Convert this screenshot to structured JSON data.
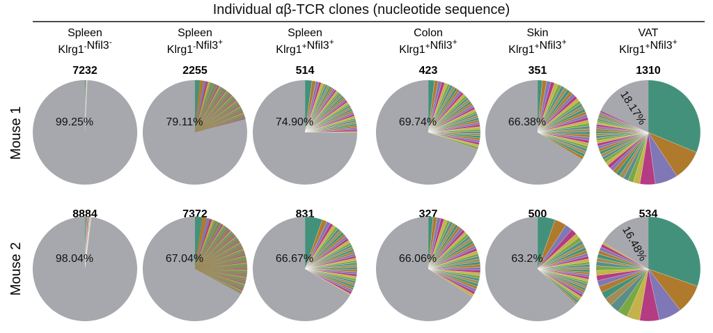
{
  "figure": {
    "title": "Individual αβ-TCR clones (nucleotide sequence)"
  },
  "columns": [
    {
      "tissue": "Spleen",
      "phenotype": [
        [
          "Klrg1",
          "-"
        ],
        [
          "Nfil3",
          "-"
        ]
      ]
    },
    {
      "tissue": "Spleen",
      "phenotype": [
        [
          "Klrg1",
          "-"
        ],
        [
          "Nfil3",
          "+"
        ]
      ]
    },
    {
      "tissue": "Spleen",
      "phenotype": [
        [
          "Klrg1",
          "+"
        ],
        [
          "Nfil3",
          "+"
        ]
      ]
    },
    {
      "tissue": "Colon",
      "phenotype": [
        [
          "Klrg1",
          "+"
        ],
        [
          "Nfil3",
          "+"
        ]
      ]
    },
    {
      "tissue": "Skin",
      "phenotype": [
        [
          "Klrg1",
          "+"
        ],
        [
          "Nfil3",
          "+"
        ]
      ]
    },
    {
      "tissue": "VAT",
      "phenotype": [
        [
          "Klrg1",
          "+"
        ],
        [
          "Nfil3",
          "+"
        ]
      ]
    }
  ],
  "rows": [
    {
      "label": "Mouse 1"
    },
    {
      "label": "Mouse 2"
    }
  ],
  "colors": {
    "remainder": "#a6a8ad",
    "palette": [
      "#43917a",
      "#b07a2c",
      "#8077b6",
      "#b43c82",
      "#c4b24a",
      "#7ba843",
      "#5a8d8a",
      "#a28c55"
    ],
    "dense_fill": "#9e8d5a"
  },
  "chart_data": [
    {
      "type": "pie",
      "row": "Mouse 1",
      "column": 1,
      "count_label": "7232",
      "remainder_label": "99.25%",
      "remainder_pct": 99.25,
      "clone_slices": [
        0.3,
        0.2,
        0.1,
        0.1,
        0.05
      ]
    },
    {
      "type": "pie",
      "row": "Mouse 1",
      "column": 2,
      "count_label": "2255",
      "remainder_label": "79.11%",
      "remainder_pct": 79.11,
      "clone_slices": [
        1.2,
        0.8,
        0.6,
        0.5,
        0.45,
        0.4,
        0.38,
        0.35,
        0.33,
        0.3,
        0.3,
        0.28,
        0.27,
        0.26,
        0.25,
        0.25,
        0.24,
        0.24,
        0.23,
        0.23,
        0.22,
        0.22,
        0.22,
        0.21,
        0.21,
        0.21,
        0.2,
        0.2,
        0.2,
        0.2,
        0.2,
        0.2,
        0.2,
        0.2,
        0.2,
        0.2,
        0.2,
        0.2,
        0.2,
        0.2,
        0.2,
        0.2,
        0.2,
        0.2,
        0.2,
        0.2,
        0.2,
        0.2,
        0.2,
        0.2,
        0.2,
        0.2,
        0.2,
        0.2,
        0.2,
        0.2,
        0.2,
        0.2,
        0.2,
        0.2
      ]
    },
    {
      "type": "pie",
      "row": "Mouse 1",
      "column": 3,
      "count_label": "514",
      "remainder_label": "74.90%",
      "remainder_pct": 74.9,
      "clone_slices": [
        2.2,
        1.2,
        0.9,
        0.8,
        0.75,
        0.7,
        0.7,
        0.65,
        0.65,
        0.6,
        0.6,
        0.6,
        0.6,
        0.6,
        0.6,
        0.6,
        0.6,
        0.6,
        0.6,
        0.6,
        0.6,
        0.6,
        0.6,
        0.6,
        0.6,
        0.6,
        0.6,
        0.6,
        0.6,
        0.6,
        0.6,
        0.6,
        0.6,
        0.6,
        0.6,
        0.6,
        0.35
      ]
    },
    {
      "type": "pie",
      "row": "Mouse 1",
      "column": 4,
      "count_label": "423",
      "remainder_label": "69.74%",
      "remainder_pct": 69.74,
      "clone_slices": [
        2.0,
        1.2,
        1.1,
        1.0,
        0.95,
        0.9,
        0.9,
        0.85,
        0.85,
        0.8,
        0.8,
        0.8,
        0.78,
        0.78,
        0.76,
        0.76,
        0.74,
        0.74,
        0.72,
        0.72,
        0.72,
        0.72,
        0.72,
        0.72,
        0.72,
        0.72,
        0.72,
        0.72,
        0.72,
        0.72,
        0.72,
        0.72,
        0.72,
        0.72,
        0.72,
        0.72,
        0.72,
        0.72
      ]
    },
    {
      "type": "pie",
      "row": "Mouse 1",
      "column": 5,
      "count_label": "351",
      "remainder_label": "66.38%",
      "remainder_pct": 66.38,
      "clone_slices": [
        1.5,
        1.4,
        1.3,
        1.2,
        1.2,
        1.1,
        1.1,
        1.1,
        1.05,
        1.05,
        1.0,
        1.0,
        1.0,
        1.0,
        0.95,
        0.95,
        0.95,
        0.95,
        0.92,
        0.92,
        0.92,
        0.92,
        0.9,
        0.9,
        0.9,
        0.9,
        0.9,
        0.9,
        0.9,
        0.9,
        0.9,
        0.9,
        0.9,
        0.9
      ]
    },
    {
      "type": "pie",
      "row": "Mouse 1",
      "column": 6,
      "count_label": "1310",
      "remainder_label": "18.17%",
      "remainder_pct": 18.17,
      "clone_slices": [
        33.0,
        10.0,
        7.5,
        5.0,
        2.2,
        1.8,
        1.6,
        1.5,
        1.4,
        1.3,
        1.2,
        1.2,
        1.1,
        1.1,
        1.0,
        1.0,
        0.95,
        0.95,
        0.9,
        0.9,
        0.85,
        0.85,
        0.8,
        0.8,
        0.75,
        0.75,
        0.7,
        0.7,
        0.65,
        0.65,
        0.6,
        0.6,
        0.55,
        0.55,
        0.5,
        0.5
      ]
    },
    {
      "type": "pie",
      "row": "Mouse 2",
      "column": 1,
      "count_label": "8884",
      "remainder_label": "98.04%",
      "remainder_pct": 98.04,
      "clone_slices": [
        0.4,
        0.35,
        0.3,
        0.25,
        0.2,
        0.16,
        0.12,
        0.08,
        0.05,
        0.05
      ]
    },
    {
      "type": "pie",
      "row": "Mouse 2",
      "column": 2,
      "count_label": "7372",
      "remainder_label": "67.04%",
      "remainder_pct": 67.04,
      "clone_slices": [
        2.5,
        1.5,
        1.0,
        0.8,
        0.7,
        0.6,
        0.55,
        0.5,
        0.48,
        0.46,
        0.44,
        0.42,
        0.4,
        0.4,
        0.38,
        0.38,
        0.36,
        0.36,
        0.35,
        0.35,
        0.34,
        0.34,
        0.33,
        0.33,
        0.32,
        0.32,
        0.32,
        0.31,
        0.31,
        0.31,
        0.3,
        0.3,
        0.3,
        0.3,
        0.3,
        0.3,
        0.3,
        0.3,
        0.3,
        0.3,
        0.3,
        0.3,
        0.3,
        0.3,
        0.3,
        0.3,
        0.3,
        0.3,
        0.3,
        0.3,
        0.3,
        0.3,
        0.3,
        0.3,
        0.3,
        0.3,
        0.3,
        0.3,
        0.3,
        0.3,
        0.3,
        0.3,
        0.3,
        0.3,
        0.3,
        0.3,
        0.3,
        0.3,
        0.3,
        0.3,
        0.3,
        0.3,
        0.3,
        0.3,
        0.3,
        0.3,
        0.3,
        0.3,
        0.3,
        0.3,
        0.3,
        0.3,
        0.3,
        0.3,
        0.3,
        0.3,
        0.3,
        0.3,
        0.3,
        0.3,
        0.3,
        0.3,
        0.3,
        0.3,
        0.3,
        0.3
      ]
    },
    {
      "type": "pie",
      "row": "Mouse 2",
      "column": 3,
      "count_label": "831",
      "remainder_label": "66.67%",
      "remainder_pct": 66.67,
      "clone_slices": [
        5.5,
        1.5,
        1.2,
        1.0,
        0.95,
        0.9,
        0.9,
        0.85,
        0.85,
        0.8,
        0.8,
        0.78,
        0.78,
        0.76,
        0.76,
        0.74,
        0.74,
        0.72,
        0.72,
        0.72,
        0.72,
        0.72,
        0.72,
        0.72,
        0.72,
        0.72,
        0.72,
        0.72,
        0.72,
        0.72,
        0.72,
        0.72,
        0.72,
        0.72,
        0.72,
        0.72,
        0.32
      ]
    },
    {
      "type": "pie",
      "row": "Mouse 2",
      "column": 4,
      "count_label": "327",
      "remainder_label": "66.06%",
      "remainder_pct": 66.06,
      "clone_slices": [
        1.6,
        1.3,
        1.2,
        1.1,
        1.05,
        1.0,
        1.0,
        1.0,
        0.95,
        0.95,
        0.95,
        0.92,
        0.92,
        0.92,
        0.9,
        0.9,
        0.9,
        0.9,
        0.9,
        0.9,
        0.9,
        0.9,
        0.9,
        0.9,
        0.9,
        0.9,
        0.9,
        0.9,
        0.9,
        0.9,
        0.9,
        0.9,
        0.9,
        0.9,
        0.9,
        0.9,
        0.9
      ]
    },
    {
      "type": "pie",
      "row": "Mouse 2",
      "column": 5,
      "count_label": "500",
      "remainder_label": "63.2%",
      "remainder_pct": 63.2,
      "clone_slices": [
        6.0,
        4.0,
        2.5,
        2.0,
        1.5,
        1.4,
        1.3,
        1.2,
        1.1,
        1.0,
        1.0,
        0.95,
        0.95,
        0.9,
        0.9,
        0.85,
        0.85,
        0.8,
        0.8,
        0.8,
        0.8,
        0.8,
        0.8,
        0.8,
        0.8,
        0.8,
        0.8,
        0.8,
        0.8,
        0.8,
        0.8,
        0.6
      ]
    },
    {
      "type": "pie",
      "row": "Mouse 2",
      "column": 6,
      "count_label": "534",
      "remainder_label": "16.48%",
      "remainder_pct": 16.48,
      "clone_slices": [
        30.0,
        9.0,
        7.0,
        6.0,
        4.0,
        3.0,
        3.0,
        2.5,
        2.2,
        2.0,
        1.8,
        1.6,
        1.5,
        1.4,
        1.3,
        1.2,
        1.2,
        1.1,
        1.1,
        1.0,
        0.6
      ]
    }
  ]
}
